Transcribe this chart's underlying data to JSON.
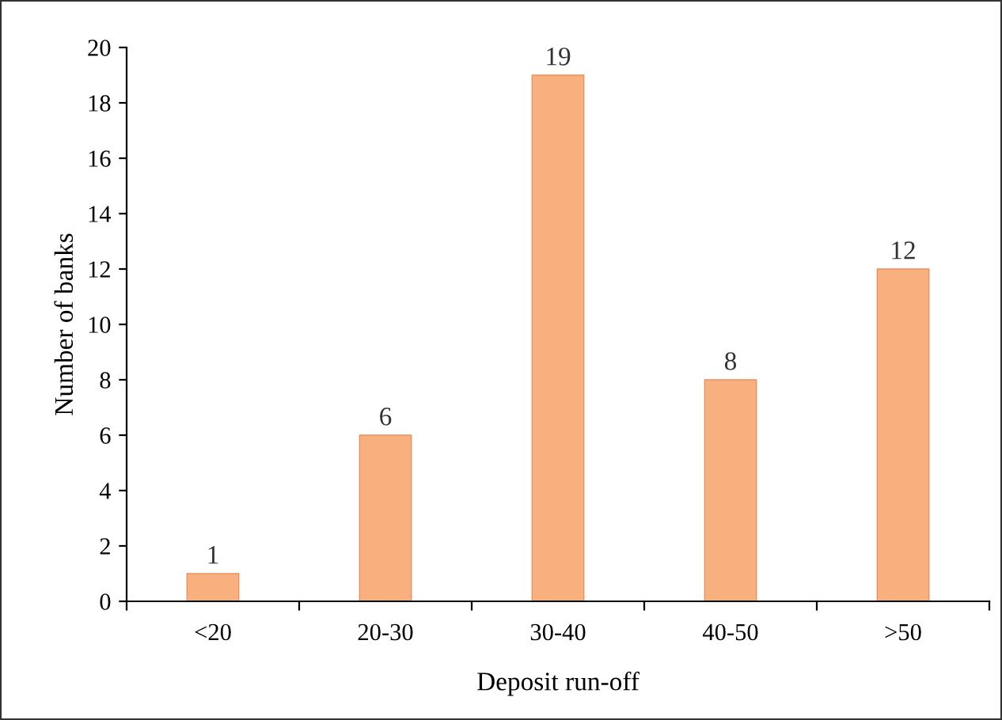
{
  "chart_data": {
    "type": "bar",
    "xlabel": "Deposit run-off",
    "ylabel": "Number of banks",
    "categories": [
      "<20",
      "20-30",
      "30-40",
      "40-50",
      ">50"
    ],
    "values": [
      1,
      6,
      19,
      8,
      12
    ],
    "color": "#f9b07f",
    "ylim": [
      0,
      20
    ],
    "yticks": [
      0,
      2,
      4,
      6,
      8,
      10,
      12,
      14,
      16,
      18,
      20
    ],
    "grid": false,
    "data_labels": true
  }
}
